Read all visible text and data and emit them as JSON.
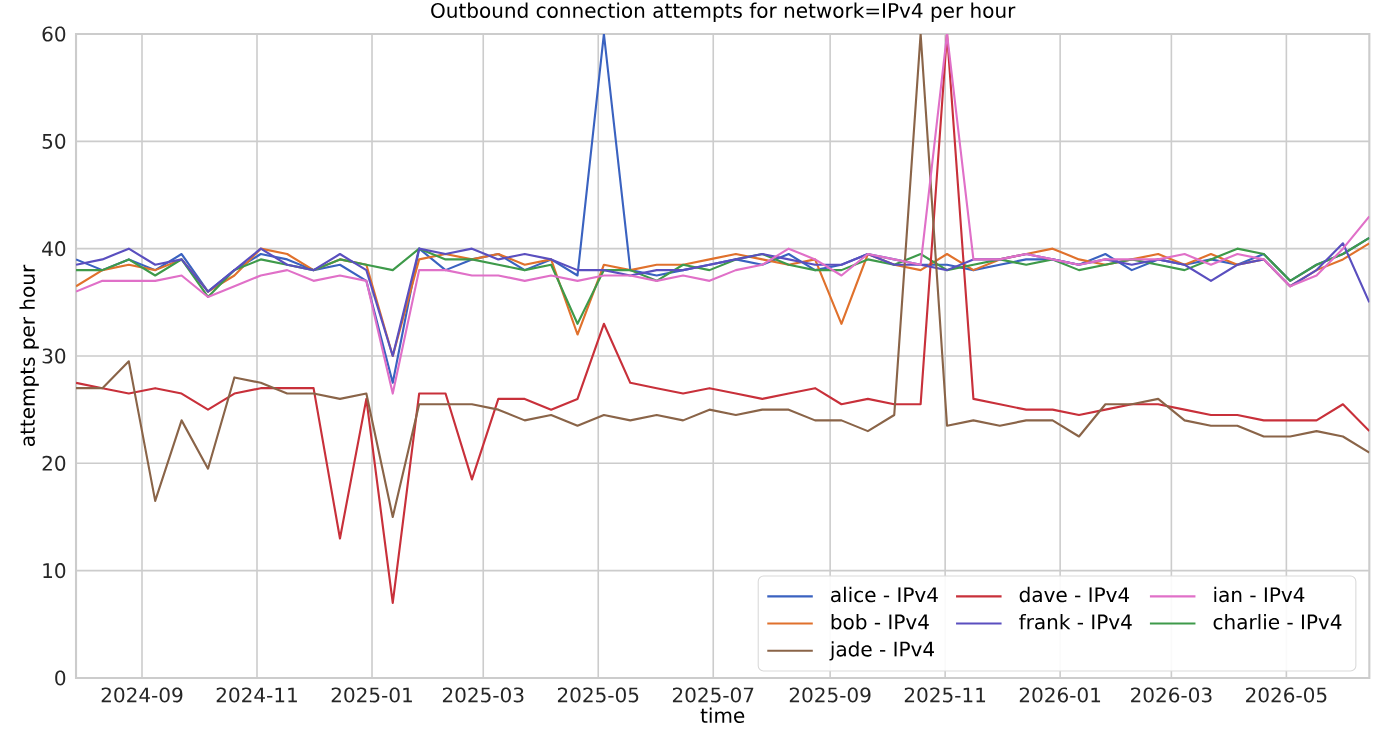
{
  "chart_data": {
    "type": "line",
    "title": "Outbound connection attempts for network=IPv4 per hour",
    "xlabel": "time",
    "ylabel": "attempts per hour",
    "x": [
      "2024-07-28",
      "2024-08-11",
      "2024-08-25",
      "2024-09-08",
      "2024-09-22",
      "2024-10-06",
      "2024-10-20",
      "2024-11-03",
      "2024-11-17",
      "2024-12-01",
      "2024-12-15",
      "2024-12-29",
      "2025-01-12",
      "2025-01-26",
      "2025-02-09",
      "2025-02-23",
      "2025-03-09",
      "2025-03-23",
      "2025-04-06",
      "2025-04-20",
      "2025-05-04",
      "2025-05-18",
      "2025-06-01",
      "2025-06-15",
      "2025-06-29",
      "2025-07-13",
      "2025-07-27",
      "2025-08-10",
      "2025-08-24",
      "2025-09-07",
      "2025-09-21",
      "2025-10-05",
      "2025-10-19",
      "2025-11-02",
      "2025-11-16",
      "2025-11-30",
      "2025-12-14",
      "2025-12-28",
      "2026-01-11",
      "2026-01-25",
      "2026-02-08",
      "2026-02-22",
      "2026-03-08",
      "2026-03-22",
      "2026-04-05",
      "2026-04-19",
      "2026-05-03",
      "2026-05-17",
      "2026-05-31",
      "2026-06-14"
    ],
    "series": [
      {
        "name": "alice - IPv4",
        "color": "#3a62c0",
        "values": [
          39,
          38,
          39,
          38,
          39.5,
          36,
          38,
          39.5,
          39,
          38,
          38.5,
          37,
          27.5,
          40,
          38,
          39,
          39.5,
          38,
          39,
          37.5,
          60,
          38,
          37.5,
          38,
          38.5,
          39,
          38.5,
          39.5,
          38,
          38.5,
          39.5,
          39,
          38.5,
          38.5,
          38,
          38.5,
          39,
          39,
          38.5,
          39.5,
          38,
          39,
          38.5,
          39,
          38.5,
          39.5,
          37,
          38.5,
          39.5,
          41
        ]
      },
      {
        "name": "bob - IPv4",
        "color": "#e0712c",
        "values": [
          36.5,
          38,
          38.5,
          38,
          39,
          36,
          37.5,
          40,
          39.5,
          38,
          39,
          38.5,
          30,
          39,
          39.5,
          39,
          39.5,
          38.5,
          39,
          32,
          38.5,
          38,
          38.5,
          38.5,
          39,
          39.5,
          39,
          38.5,
          39,
          33,
          39.5,
          38.5,
          38,
          39.5,
          38,
          39,
          39.5,
          40,
          39,
          38.5,
          39,
          39.5,
          38.5,
          39.5,
          38.5,
          39,
          36.5,
          38,
          39,
          40.5
        ]
      },
      {
        "name": "charlie - IPv4",
        "color": "#3e9a4a",
        "values": [
          38,
          38,
          39,
          37.5,
          39,
          35.5,
          38,
          39,
          38.5,
          38,
          39,
          38.5,
          38,
          40,
          39,
          39,
          38.5,
          38,
          38.5,
          33,
          38,
          38,
          37,
          38.5,
          38,
          39,
          39.5,
          38.5,
          38,
          38,
          39,
          38.5,
          39.5,
          38,
          38.5,
          39,
          38.5,
          39,
          38,
          38.5,
          39,
          38.5,
          38,
          39,
          40,
          39.5,
          37,
          38.5,
          39.5,
          41
        ]
      },
      {
        "name": "dave - IPv4",
        "color": "#c8303a",
        "values": [
          27.5,
          27,
          26.5,
          27,
          26.5,
          25,
          26.5,
          27,
          27,
          27,
          13,
          26,
          7,
          26.5,
          26.5,
          18.5,
          26,
          26,
          25,
          26,
          33,
          27.5,
          27,
          26.5,
          27,
          26.5,
          26,
          26.5,
          27,
          25.5,
          26,
          25.5,
          25.5,
          60,
          26,
          25.5,
          25,
          25,
          24.5,
          25,
          25.5,
          25.5,
          25,
          24.5,
          24.5,
          24,
          24,
          24,
          25.5,
          23
        ]
      },
      {
        "name": "frank - IPv4",
        "color": "#5a4fbf",
        "values": [
          38.5,
          39,
          40,
          38.5,
          39,
          36,
          38,
          40,
          38.5,
          38,
          39.5,
          38,
          30,
          40,
          39.5,
          40,
          39,
          39.5,
          39,
          38,
          38,
          37.5,
          38,
          38,
          38.5,
          39,
          39.5,
          39,
          38.5,
          38.5,
          39.5,
          38.5,
          38.5,
          38,
          39,
          39,
          39.5,
          39,
          38.5,
          39,
          38.5,
          39,
          38.5,
          37,
          38.5,
          39,
          36.5,
          38,
          40.5,
          35
        ]
      },
      {
        "name": "jade - IPv4",
        "color": "#8a6448",
        "values": [
          27,
          27,
          29.5,
          16.5,
          24,
          19.5,
          28,
          27.5,
          26.5,
          26.5,
          26,
          26.5,
          15,
          25.5,
          25.5,
          25.5,
          25,
          24,
          24.5,
          23.5,
          24.5,
          24,
          24.5,
          24,
          25,
          24.5,
          25,
          25,
          24,
          24,
          23,
          24.5,
          60,
          23.5,
          24,
          23.5,
          24,
          24,
          22.5,
          25.5,
          25.5,
          26,
          24,
          23.5,
          23.5,
          22.5,
          22.5,
          23,
          22.5,
          21
        ]
      },
      {
        "name": "ian - IPv4",
        "color": "#e070c8",
        "values": [
          36,
          37,
          37,
          37,
          37.5,
          35.5,
          36.5,
          37.5,
          38,
          37,
          37.5,
          37,
          26.5,
          38,
          38,
          37.5,
          37.5,
          37,
          37.5,
          37,
          37.5,
          37.5,
          37,
          37.5,
          37,
          38,
          38.5,
          40,
          39,
          37.5,
          39.5,
          39,
          38.5,
          60,
          39,
          39,
          39.5,
          39,
          38.5,
          39,
          39,
          39,
          39.5,
          38.5,
          39.5,
          39,
          36.5,
          37.5,
          40,
          43
        ]
      }
    ],
    "xlim": [
      "2024-07-28",
      "2026-06-14"
    ],
    "ylim": [
      0,
      60
    ],
    "xticks": [
      {
        "value": "2024-09-01",
        "label": "2024-09"
      },
      {
        "value": "2024-11-01",
        "label": "2024-11"
      },
      {
        "value": "2025-01-01",
        "label": "2025-01"
      },
      {
        "value": "2025-03-01",
        "label": "2025-03"
      },
      {
        "value": "2025-05-01",
        "label": "2025-05"
      },
      {
        "value": "2025-07-01",
        "label": "2025-07"
      },
      {
        "value": "2025-09-01",
        "label": "2025-09"
      },
      {
        "value": "2025-11-01",
        "label": "2025-11"
      },
      {
        "value": "2026-01-01",
        "label": "2026-01"
      },
      {
        "value": "2026-03-01",
        "label": "2026-03"
      },
      {
        "value": "2026-05-01",
        "label": "2026-05"
      }
    ],
    "yticks": [
      0,
      10,
      20,
      30,
      40,
      50,
      60
    ],
    "grid": true,
    "legend": "bottom right",
    "marker": "none",
    "line_style": "solid"
  }
}
